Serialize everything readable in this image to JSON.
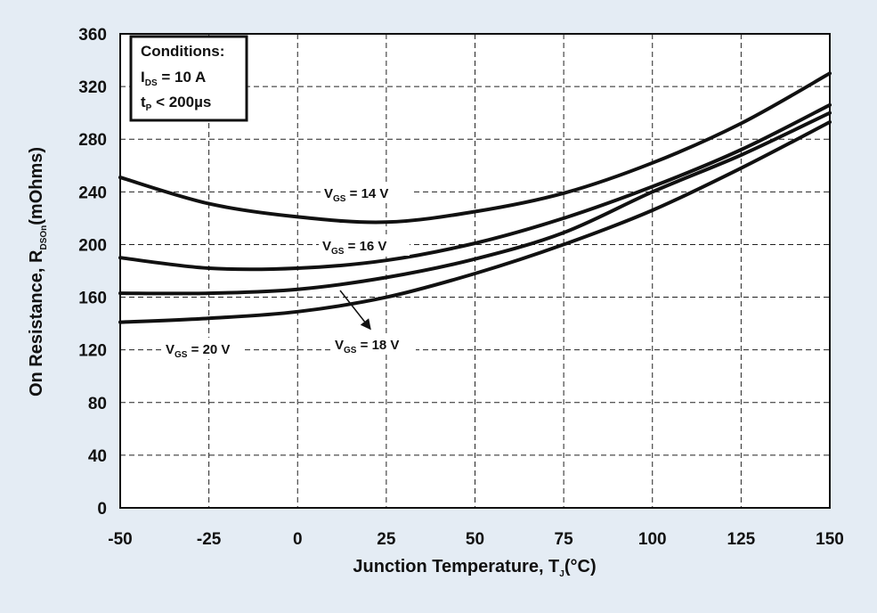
{
  "chart_data": {
    "type": "line",
    "xlabel": {
      "main": "Junction Temperature, T",
      "sub": "J",
      "rest": "(°C)"
    },
    "ylabel": {
      "main": "On Resistance, R",
      "sub": "DSOn",
      "rest": "(mOhms)"
    },
    "xlim": [
      -50,
      150
    ],
    "ylim": [
      0,
      360
    ],
    "xticks": [
      -50,
      -25,
      0,
      25,
      50,
      75,
      100,
      125,
      150
    ],
    "yticks": [
      0,
      40,
      80,
      120,
      160,
      200,
      240,
      280,
      320,
      360
    ],
    "grid": true,
    "conditions": {
      "title": "Conditions:",
      "line1": {
        "main": "I",
        "sub": "DS",
        "rest": " = 10 A"
      },
      "line2": {
        "main": "t",
        "sub": "P",
        "rest": " < 200µs"
      }
    },
    "series": [
      {
        "label": {
          "main": "V",
          "sub": "GS",
          "rest": " = 14 V"
        },
        "x": [
          -50,
          -25,
          0,
          25,
          50,
          75,
          100,
          125,
          150
        ],
        "y": [
          251,
          231,
          221,
          217,
          225,
          239,
          262,
          292,
          330
        ]
      },
      {
        "label": {
          "main": "V",
          "sub": "GS",
          "rest": " = 16 V"
        },
        "x": [
          -50,
          -25,
          0,
          25,
          50,
          75,
          100,
          125,
          150
        ],
        "y": [
          190,
          182,
          182,
          188,
          201,
          220,
          244,
          272,
          306
        ]
      },
      {
        "label": {
          "main": "V",
          "sub": "GS",
          "rest": " = 18 V"
        },
        "x": [
          -50,
          -25,
          0,
          25,
          50,
          75,
          100,
          125,
          150
        ],
        "y": [
          163,
          163,
          166,
          175,
          189,
          209,
          240,
          268,
          300
        ]
      },
      {
        "label": {
          "main": "V",
          "sub": "GS",
          "rest": " = 20 V"
        },
        "x": [
          -50,
          -25,
          0,
          25,
          50,
          75,
          100,
          125,
          150
        ],
        "y": [
          141,
          144,
          149,
          160,
          178,
          200,
          226,
          258,
          293
        ]
      }
    ]
  }
}
